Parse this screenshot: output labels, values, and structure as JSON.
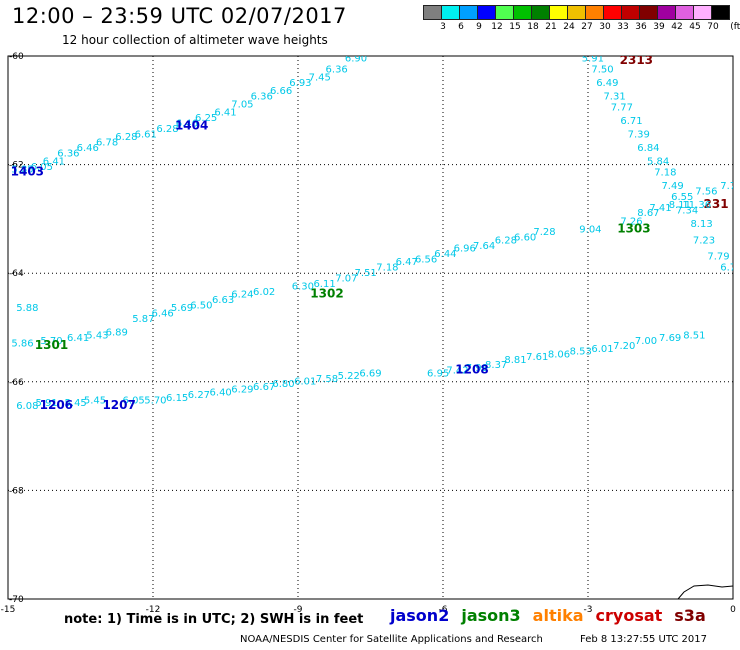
{
  "header": {
    "title": "12:00 – 23:59 UTC 02/07/2017",
    "subtitle": "12 hour collection of altimeter wave heights"
  },
  "legend": {
    "unit": "(ft)",
    "colors": [
      "#7f7f7f",
      "#00f0f0",
      "#00a0ff",
      "#0000ff",
      "#50ff50",
      "#00c000",
      "#008000",
      "#ffff00",
      "#f0c000",
      "#ff8000",
      "#ff0000",
      "#c00000",
      "#800000",
      "#a000a0",
      "#e060e0",
      "#ffb0ff",
      "#000000"
    ],
    "labels": [
      "3",
      "6",
      "9",
      "12",
      "15",
      "18",
      "21",
      "24",
      "27",
      "30",
      "33",
      "36",
      "39",
      "42",
      "45",
      "70"
    ]
  },
  "footer": {
    "note": "note: 1) Time is in UTC; 2) SWH is in feet",
    "satellites": [
      {
        "name": "jason2",
        "color": "#0000cc"
      },
      {
        "name": "jason3",
        "color": "#008000"
      },
      {
        "name": "altika",
        "color": "#ff8000"
      },
      {
        "name": "cryosat",
        "color": "#cc0000"
      },
      {
        "name": "s3a",
        "color": "#800000"
      }
    ],
    "credit": "NOAA/NESDIS Center for Satellite Applications and Research",
    "generated": "Feb  8 13:27:55 UTC 2017"
  },
  "chart_data": {
    "type": "scatter",
    "xlim": [
      -15,
      0
    ],
    "ylim": [
      -70,
      -60
    ],
    "xticks": [
      -15,
      -12,
      -9,
      -6,
      -3,
      0
    ],
    "yticks": [
      -70,
      -68,
      -66,
      -64,
      -62,
      -60
    ],
    "xtick_labels": [
      "-15",
      "-12",
      "-9",
      "-6",
      "-3",
      "0"
    ],
    "ytick_labels": [
      "-70",
      "-68",
      "-66",
      "-64",
      "-62",
      "-60"
    ],
    "grid": true,
    "value_color": "#00c8e8",
    "tracks": [
      {
        "pass": "1403",
        "pass_color": "#0000cc",
        "pass_lon": -14.6,
        "pass_lat": -62.2,
        "points": [
          [
            -14.7,
            -62.15,
            "5.85"
          ],
          [
            -14.3,
            -62.1,
            "6.05"
          ],
          [
            -14.05,
            -62.0,
            "6.41"
          ],
          [
            -13.75,
            -61.85,
            "6.36"
          ],
          [
            -13.35,
            -61.75,
            "6.46"
          ],
          [
            -12.95,
            -61.65,
            "6.78"
          ],
          [
            -12.55,
            -61.55,
            "6.28"
          ],
          [
            -12.15,
            -61.5,
            "6.61"
          ],
          [
            -11.7,
            -61.4,
            "6.28"
          ],
          [
            -11.3,
            -61.3,
            "6.46"
          ],
          [
            -10.9,
            -61.2,
            "6.25"
          ],
          [
            -10.5,
            -61.1,
            "6.41"
          ],
          [
            -10.15,
            -60.95,
            "7.05"
          ],
          [
            -9.75,
            -60.8,
            "6.36"
          ],
          [
            -9.35,
            -60.7,
            "6.66"
          ],
          [
            -8.95,
            -60.55,
            "6.93"
          ],
          [
            -8.55,
            -60.45,
            "7.45"
          ],
          [
            -8.2,
            -60.3,
            "6.36"
          ],
          [
            -7.8,
            -60.1,
            "6.90"
          ]
        ]
      },
      {
        "pass": "1404",
        "pass_color": "#0000cc",
        "pass_lon": -11.2,
        "pass_lat": -61.35,
        "points": []
      },
      {
        "pass": "2313",
        "pass_color": "#800000",
        "pass_lon": -2.0,
        "pass_lat": -60.15,
        "points": [
          [
            -2.9,
            -60.1,
            "5.91"
          ],
          [
            -2.7,
            -60.3,
            "7.50"
          ],
          [
            -2.6,
            -60.55,
            "6.49"
          ],
          [
            -2.45,
            -60.8,
            "7.31"
          ],
          [
            -2.3,
            -61.0,
            "7.77"
          ],
          [
            -2.1,
            -61.25,
            "6.71"
          ],
          [
            -1.95,
            -61.5,
            "7.39"
          ],
          [
            -1.75,
            -61.75,
            "6.84"
          ],
          [
            -1.55,
            -62.0,
            "5.84"
          ],
          [
            -1.4,
            -62.2,
            "7.18"
          ],
          [
            -1.25,
            -62.45,
            "7.49"
          ],
          [
            -1.05,
            -62.65,
            "6.55"
          ],
          [
            -0.95,
            -62.9,
            "7.34"
          ],
          [
            -0.65,
            -63.15,
            "8.13"
          ],
          [
            -0.6,
            -63.45,
            "7.23"
          ],
          [
            -0.3,
            -63.75,
            "7.79"
          ],
          [
            -0.1,
            -63.95,
            "6.7"
          ]
        ]
      },
      {
        "pass": "231",
        "pass_color": "#800000",
        "pass_lon": -0.35,
        "pass_lat": -62.8,
        "points": [
          [
            -0.55,
            -62.55,
            "7.56"
          ],
          [
            -0.1,
            -62.45,
            "7.7"
          ]
        ]
      },
      {
        "pass": "1303",
        "pass_color": "#008000",
        "pass_lon": -2.05,
        "pass_lat": -63.25,
        "points": [
          [
            -2.95,
            -63.25,
            "9.04"
          ],
          [
            -2.1,
            -63.1,
            "7.26"
          ],
          [
            -1.75,
            -62.95,
            "8.67"
          ],
          [
            -1.5,
            -62.85,
            "7.41"
          ],
          [
            -1.1,
            -62.8,
            "8.11"
          ],
          [
            -0.75,
            -62.8,
            "11.36"
          ]
        ]
      },
      {
        "pass": "1302",
        "pass_color": "#008000",
        "pass_lon": -8.4,
        "pass_lat": -64.45,
        "points": [
          [
            -14.6,
            -64.7,
            "5.88"
          ],
          [
            -12.2,
            -64.9,
            "5.87"
          ],
          [
            -11.8,
            -64.8,
            "6.46"
          ],
          [
            -11.4,
            -64.7,
            "5.69"
          ],
          [
            -11.0,
            -64.65,
            "6.50"
          ],
          [
            -10.55,
            -64.55,
            "6.63"
          ],
          [
            -10.15,
            -64.45,
            "6.24"
          ],
          [
            -9.7,
            -64.4,
            "6.02"
          ],
          [
            -8.9,
            -64.3,
            "6.30"
          ],
          [
            -8.45,
            -64.25,
            "6.11"
          ],
          [
            -8.0,
            -64.15,
            "7.07"
          ],
          [
            -7.6,
            -64.05,
            "7.51"
          ],
          [
            -7.15,
            -63.95,
            "7.18"
          ],
          [
            -6.75,
            -63.85,
            "6.47"
          ],
          [
            -6.35,
            -63.8,
            "6.56"
          ],
          [
            -5.95,
            -63.7,
            "6.44"
          ],
          [
            -5.55,
            -63.6,
            "6.96"
          ],
          [
            -5.15,
            -63.55,
            "7.64"
          ],
          [
            -4.7,
            -63.45,
            "6.28"
          ],
          [
            -4.3,
            -63.4,
            "6.60"
          ],
          [
            -3.9,
            -63.3,
            "7.28"
          ]
        ]
      },
      {
        "pass": "1301",
        "pass_color": "#008000",
        "pass_lon": -14.1,
        "pass_lat": -65.4,
        "points": [
          [
            -14.7,
            -65.35,
            "5.86"
          ],
          [
            -14.1,
            -65.3,
            "5.70"
          ],
          [
            -13.55,
            -65.25,
            "6.41"
          ],
          [
            -13.15,
            -65.2,
            "5.43"
          ],
          [
            -12.75,
            -65.15,
            "6.89"
          ]
        ]
      },
      {
        "pass": "1208",
        "pass_color": "#0000cc",
        "pass_lon": -5.4,
        "pass_lat": -65.85,
        "points": [
          [
            -6.1,
            -65.9,
            "6.95"
          ],
          [
            -5.7,
            -65.85,
            "7.42"
          ],
          [
            -5.3,
            -65.8,
            "7.98"
          ],
          [
            -4.9,
            -65.75,
            "8.37"
          ],
          [
            -4.5,
            -65.65,
            "8.81"
          ],
          [
            -4.05,
            -65.6,
            "7.61"
          ],
          [
            -3.6,
            -65.55,
            "8.06"
          ],
          [
            -3.15,
            -65.5,
            "8.53"
          ],
          [
            -2.7,
            -65.45,
            "6.01"
          ],
          [
            -2.25,
            -65.4,
            "7.20"
          ],
          [
            -1.8,
            -65.3,
            "7.00"
          ],
          [
            -1.3,
            -65.25,
            "7.69"
          ],
          [
            -0.8,
            -65.2,
            "8.51"
          ]
        ]
      },
      {
        "pass": "1206",
        "pass_color": "#0000cc",
        "pass_lon": -14.0,
        "pass_lat": -66.5,
        "points": [
          [
            -14.6,
            -66.5,
            "6.08"
          ],
          [
            -14.2,
            -66.45,
            "5.91"
          ],
          [
            -13.6,
            -66.45,
            "5.45"
          ],
          [
            -13.2,
            -66.4,
            "5.45"
          ],
          [
            -12.4,
            -66.4,
            "6.05"
          ],
          [
            -11.95,
            -66.4,
            "5.70"
          ],
          [
            -11.5,
            -66.35,
            "6.15"
          ],
          [
            -11.05,
            -66.3,
            "6.27"
          ],
          [
            -10.6,
            -66.25,
            "6.40"
          ],
          [
            -10.15,
            -66.2,
            "6.29"
          ],
          [
            -9.7,
            -66.15,
            "6.67"
          ],
          [
            -9.3,
            -66.1,
            "6.80"
          ],
          [
            -8.85,
            -66.05,
            "6.01"
          ],
          [
            -8.4,
            -66.0,
            "7.58"
          ],
          [
            -7.95,
            -65.95,
            "5.22"
          ],
          [
            -7.5,
            -65.9,
            "6.69"
          ]
        ]
      },
      {
        "pass": "1207",
        "pass_color": "#0000cc",
        "pass_lon": -12.7,
        "pass_lat": -66.5,
        "points": []
      }
    ]
  }
}
